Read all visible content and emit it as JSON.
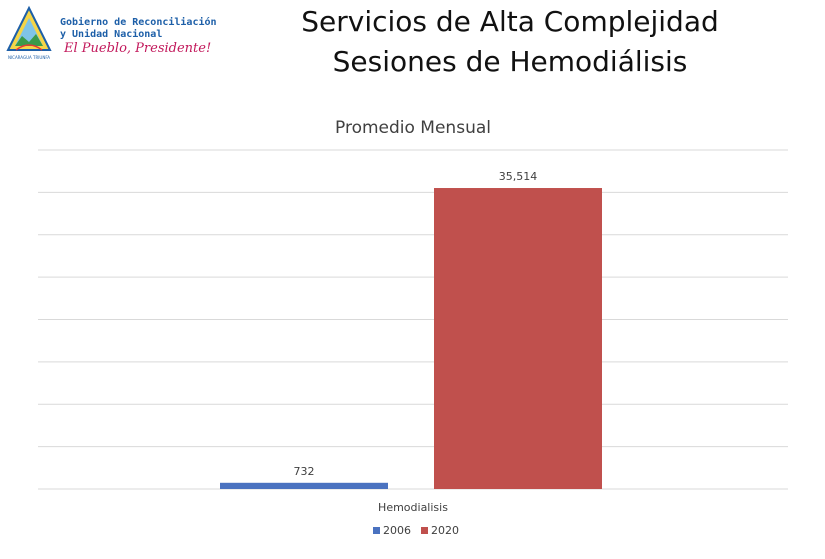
{
  "header": {
    "logo": {
      "line1": "Gobierno de Reconciliación",
      "line2": "y Unidad Nacional",
      "slogan": "El Pueblo, Presidente!",
      "mark_text": "NICARAGUA TRIUNFA"
    },
    "title_line1": "Servicios de Alta Complejidad",
    "title_line2": "Sesiones de Hemodiálisis"
  },
  "chart_data": {
    "type": "bar",
    "title": "Promedio Mensual",
    "categories": [
      "Hemodialisis"
    ],
    "series": [
      {
        "name": "2006",
        "values": [
          732
        ],
        "labels": [
          "732"
        ],
        "color": "#4a72c0"
      },
      {
        "name": "2020",
        "values": [
          35514
        ],
        "labels": [
          "35,514"
        ],
        "color": "#c0504d"
      }
    ],
    "ylim": [
      0,
      40000
    ],
    "grid": true,
    "legend": "bottom",
    "gridline_color": "#d9d9d9"
  }
}
